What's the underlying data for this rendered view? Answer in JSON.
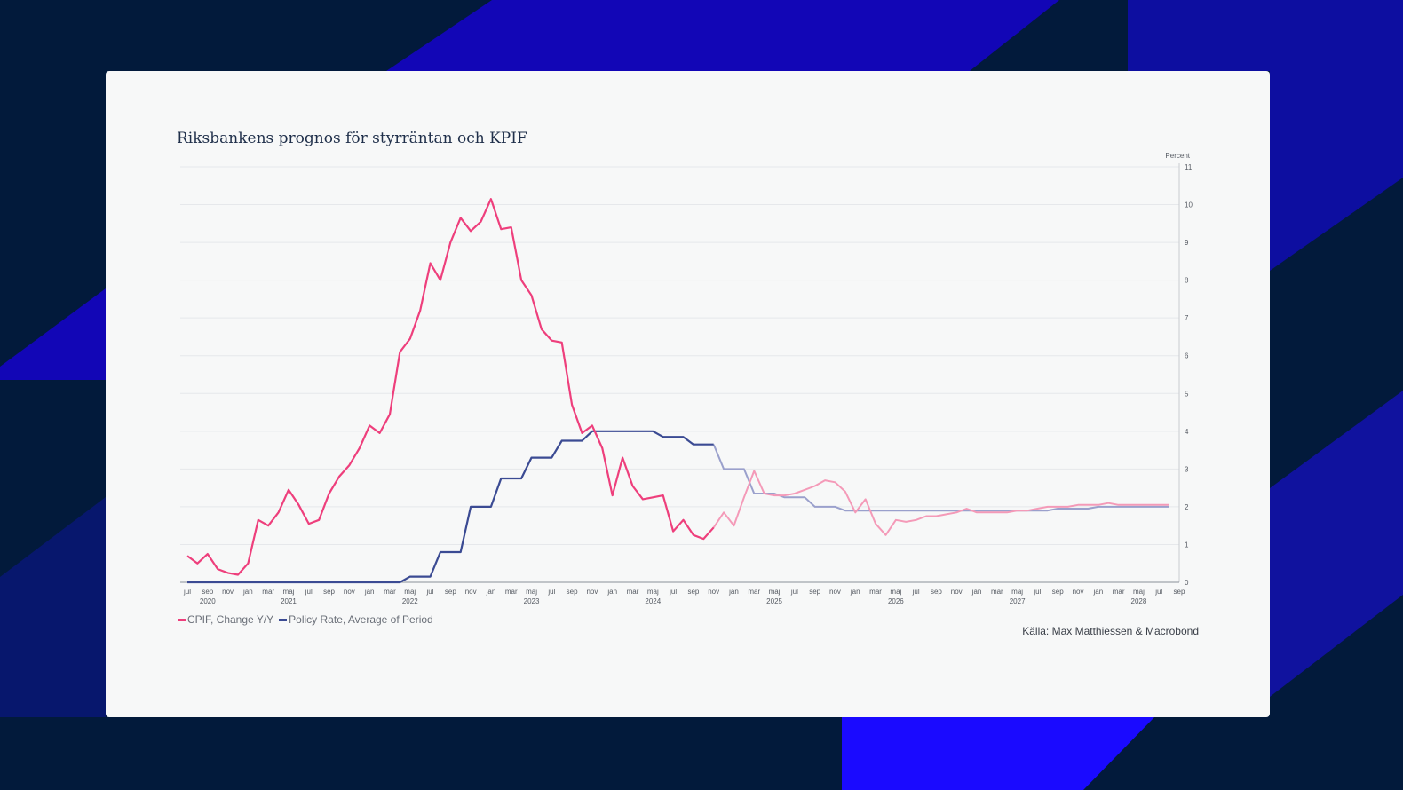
{
  "title": "Riksbankens prognos för styrräntan och KPIF",
  "unit_label": "Percent",
  "source": "Källa: Max Matthiessen & Macrobond",
  "colors": {
    "cpif": "#ee3f7c",
    "cpif_forecast": "#f49ab8",
    "policy": "#3b4b93",
    "policy_forecast": "#9aa0cc",
    "background": "#021a3b",
    "accent": "#1206b6"
  },
  "chart_data": {
    "type": "line",
    "ylabel": "Percent",
    "ylim": [
      0,
      11
    ],
    "yticks": [
      0,
      1,
      2,
      3,
      4,
      5,
      6,
      7,
      8,
      9,
      10,
      11
    ],
    "y_axis_side": "right",
    "grid": true,
    "legend_position": "bottom-left",
    "x_start": "2020-07",
    "forecast_start": "2024-11",
    "month_ticks": [
      "jul",
      "sep",
      "nov",
      "jan",
      "mar",
      "maj",
      "jul",
      "sep",
      "nov",
      "jan",
      "mar",
      "maj",
      "jul",
      "sep",
      "nov",
      "jan",
      "mar",
      "maj",
      "jul",
      "sep",
      "nov",
      "jan",
      "mar",
      "maj",
      "jul",
      "sep",
      "nov",
      "jan",
      "mar",
      "maj",
      "jul",
      "sep",
      "nov",
      "jan",
      "mar",
      "maj",
      "jul",
      "sep",
      "nov",
      "jan",
      "mar",
      "maj",
      "jul",
      "sep",
      "nov",
      "jan",
      "mar",
      "maj",
      "jul",
      "sep"
    ],
    "year_labels": [
      "2020",
      "2021",
      "2022",
      "2023",
      "2024",
      "2025",
      "2026",
      "2027",
      "2028"
    ],
    "series": [
      {
        "name": "CPIF, Change Y/Y",
        "values": [
          0.7,
          0.5,
          0.75,
          0.35,
          0.25,
          0.2,
          0.5,
          1.65,
          1.5,
          1.85,
          2.45,
          2.05,
          1.55,
          1.65,
          2.35,
          2.8,
          3.1,
          3.55,
          4.15,
          3.95,
          4.45,
          6.1,
          6.45,
          7.2,
          8.45,
          8.0,
          9.0,
          9.65,
          9.3,
          9.55,
          10.15,
          9.35,
          9.4,
          8.0,
          7.6,
          6.7,
          6.4,
          6.35,
          4.7,
          3.95,
          4.15,
          3.55,
          2.3,
          3.3,
          2.55,
          2.2,
          2.25,
          2.3,
          1.35,
          1.65,
          1.25,
          1.15,
          1.45,
          1.85,
          1.5,
          2.25,
          2.95,
          2.35,
          2.3,
          2.3,
          2.35,
          2.45,
          2.55,
          2.7,
          2.65,
          2.4,
          1.85,
          2.2,
          1.55,
          1.25,
          1.65,
          1.6,
          1.65,
          1.75,
          1.75,
          1.8,
          1.85,
          1.95,
          1.85,
          1.85,
          1.85,
          1.85,
          1.9,
          1.9,
          1.95,
          2.0,
          2.0,
          2.0,
          2.05,
          2.05,
          2.05,
          2.1,
          2.05,
          2.05,
          2.05,
          2.05,
          2.05,
          2.05
        ]
      },
      {
        "name": "Policy Rate, Average of Period",
        "values": [
          0,
          0,
          0,
          0,
          0,
          0,
          0,
          0,
          0,
          0,
          0,
          0,
          0,
          0,
          0,
          0,
          0,
          0,
          0,
          0,
          0,
          0,
          0.15,
          0.15,
          0.15,
          0.8,
          0.8,
          0.8,
          2.0,
          2.0,
          2.0,
          2.75,
          2.75,
          2.75,
          3.3,
          3.3,
          3.3,
          3.75,
          3.75,
          3.75,
          4.0,
          4.0,
          4.0,
          4.0,
          4.0,
          4.0,
          4.0,
          3.85,
          3.85,
          3.85,
          3.65,
          3.65,
          3.65,
          3.0,
          3.0,
          3.0,
          2.35,
          2.35,
          2.35,
          2.25,
          2.25,
          2.25,
          2.0,
          2.0,
          2.0,
          1.9,
          1.9,
          1.9,
          1.9,
          1.9,
          1.9,
          1.9,
          1.9,
          1.9,
          1.9,
          1.9,
          1.9,
          1.9,
          1.9,
          1.9,
          1.9,
          1.9,
          1.9,
          1.9,
          1.9,
          1.9,
          1.95,
          1.95,
          1.95,
          1.95,
          2.0,
          2.0,
          2.0,
          2.0,
          2.0,
          2.0,
          2.0,
          2.0
        ]
      }
    ]
  }
}
